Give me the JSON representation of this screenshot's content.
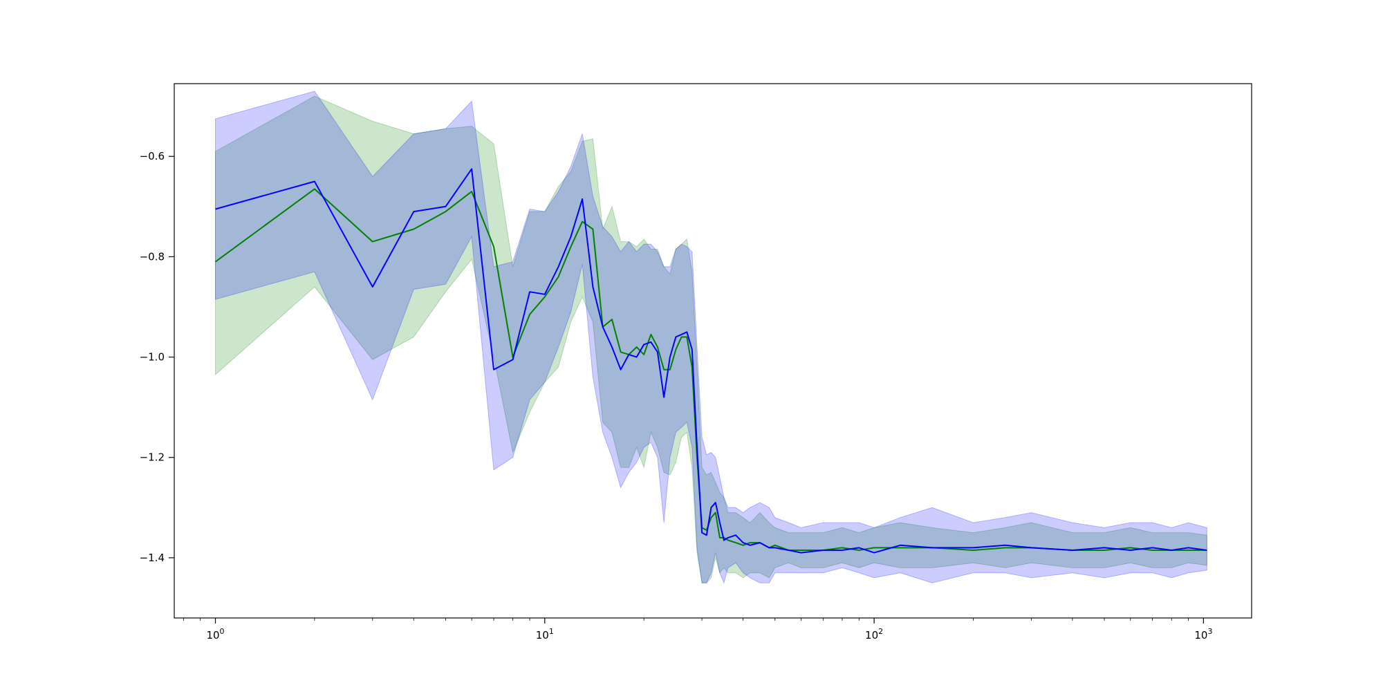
{
  "chart_data": {
    "type": "line",
    "title": "",
    "xlabel": "",
    "ylabel": "",
    "xscale": "log",
    "xlim": [
      0.75,
      1400
    ],
    "ylim": [
      -1.52,
      -0.455
    ],
    "grid": false,
    "legend": "none",
    "x_ticks": [
      {
        "value": 1,
        "base": "10",
        "exp": "0"
      },
      {
        "value": 10,
        "base": "10",
        "exp": "1"
      },
      {
        "value": 100,
        "base": "10",
        "exp": "2"
      },
      {
        "value": 1000,
        "base": "10",
        "exp": "3"
      }
    ],
    "y_ticks": [
      {
        "value": -0.6,
        "label": "−0.6"
      },
      {
        "value": -0.8,
        "label": "−0.8"
      },
      {
        "value": -1.0,
        "label": "−1.0"
      },
      {
        "value": -1.2,
        "label": "−1.2"
      },
      {
        "value": -1.4,
        "label": "−1.4"
      }
    ],
    "series": [
      {
        "color": "#008000",
        "band_color": "#008000",
        "x": [
          1,
          2,
          3,
          4,
          5,
          6,
          7,
          8,
          9,
          10,
          11,
          12,
          13,
          14,
          15,
          16,
          17,
          18,
          19,
          20,
          21,
          22,
          23,
          24,
          25,
          26,
          27,
          28,
          29,
          30,
          31,
          32,
          33,
          34,
          35,
          36,
          38,
          40,
          42,
          45,
          48,
          50,
          55,
          60,
          70,
          80,
          90,
          100,
          120,
          150,
          200,
          250,
          300,
          400,
          500,
          600,
          700,
          800,
          900,
          1024
        ],
        "mean": [
          -0.81,
          -0.665,
          -0.77,
          -0.745,
          -0.71,
          -0.67,
          -0.78,
          -1.0,
          -0.915,
          -0.88,
          -0.84,
          -0.78,
          -0.73,
          -0.745,
          -0.94,
          -0.925,
          -0.99,
          -0.995,
          -0.98,
          -0.995,
          -0.955,
          -0.98,
          -1.025,
          -1.025,
          -0.985,
          -0.96,
          -0.96,
          -1.02,
          -1.2,
          -1.34,
          -1.345,
          -1.32,
          -1.31,
          -1.36,
          -1.36,
          -1.365,
          -1.37,
          -1.375,
          -1.37,
          -1.37,
          -1.38,
          -1.375,
          -1.385,
          -1.385,
          -1.385,
          -1.38,
          -1.385,
          -1.38,
          -1.38,
          -1.38,
          -1.385,
          -1.38,
          -1.38,
          -1.385,
          -1.385,
          -1.38,
          -1.385,
          -1.385,
          -1.385,
          -1.385
        ],
        "upper": [
          -0.59,
          -0.48,
          -0.53,
          -0.555,
          -0.545,
          -0.54,
          -0.575,
          -0.82,
          -0.71,
          -0.71,
          -0.66,
          -0.63,
          -0.57,
          -0.565,
          -0.745,
          -0.7,
          -0.77,
          -0.77,
          -0.78,
          -0.765,
          -0.785,
          -0.785,
          -0.82,
          -0.835,
          -0.785,
          -0.775,
          -0.765,
          -0.83,
          -1.02,
          -1.22,
          -1.235,
          -1.23,
          -1.25,
          -1.27,
          -1.28,
          -1.31,
          -1.31,
          -1.32,
          -1.33,
          -1.31,
          -1.33,
          -1.34,
          -1.35,
          -1.35,
          -1.35,
          -1.34,
          -1.35,
          -1.34,
          -1.33,
          -1.34,
          -1.35,
          -1.34,
          -1.33,
          -1.35,
          -1.35,
          -1.34,
          -1.35,
          -1.35,
          -1.35,
          -1.355
        ],
        "lower": [
          -1.035,
          -0.86,
          -1.005,
          -0.96,
          -0.87,
          -0.805,
          -1.0,
          -1.19,
          -1.11,
          -1.05,
          -1.02,
          -0.93,
          -0.88,
          -0.93,
          -1.13,
          -1.15,
          -1.22,
          -1.22,
          -1.18,
          -1.22,
          -1.15,
          -1.18,
          -1.23,
          -1.235,
          -1.21,
          -1.16,
          -1.15,
          -1.22,
          -1.39,
          -1.45,
          -1.45,
          -1.44,
          -1.4,
          -1.43,
          -1.42,
          -1.43,
          -1.43,
          -1.44,
          -1.43,
          -1.43,
          -1.44,
          -1.42,
          -1.41,
          -1.42,
          -1.42,
          -1.41,
          -1.42,
          -1.41,
          -1.42,
          -1.42,
          -1.41,
          -1.42,
          -1.41,
          -1.42,
          -1.42,
          -1.41,
          -1.42,
          -1.42,
          -1.41,
          -1.415
        ]
      },
      {
        "color": "#0000ff",
        "band_color": "#0000ff",
        "x": [
          1,
          2,
          3,
          4,
          5,
          6,
          7,
          8,
          9,
          10,
          11,
          12,
          13,
          14,
          15,
          16,
          17,
          18,
          19,
          20,
          21,
          22,
          23,
          24,
          25,
          26,
          27,
          28,
          29,
          30,
          31,
          32,
          33,
          34,
          35,
          36,
          38,
          40,
          42,
          45,
          48,
          50,
          55,
          60,
          70,
          80,
          90,
          100,
          120,
          150,
          200,
          250,
          300,
          400,
          500,
          600,
          700,
          800,
          900,
          1024
        ],
        "mean": [
          -0.705,
          -0.65,
          -0.86,
          -0.71,
          -0.7,
          -0.625,
          -1.025,
          -1.005,
          -0.87,
          -0.875,
          -0.82,
          -0.76,
          -0.685,
          -0.86,
          -0.94,
          -0.98,
          -1.025,
          -0.995,
          -1.0,
          -0.975,
          -0.97,
          -0.99,
          -1.08,
          -1.0,
          -0.96,
          -0.955,
          -0.95,
          -0.985,
          -1.18,
          -1.35,
          -1.355,
          -1.3,
          -1.29,
          -1.33,
          -1.365,
          -1.36,
          -1.355,
          -1.37,
          -1.375,
          -1.37,
          -1.38,
          -1.38,
          -1.385,
          -1.39,
          -1.385,
          -1.385,
          -1.38,
          -1.39,
          -1.375,
          -1.38,
          -1.38,
          -1.375,
          -1.38,
          -1.385,
          -1.38,
          -1.385,
          -1.38,
          -1.385,
          -1.38,
          -1.385
        ],
        "upper": [
          -0.525,
          -0.47,
          -0.64,
          -0.555,
          -0.545,
          -0.49,
          -0.82,
          -0.81,
          -0.705,
          -0.71,
          -0.67,
          -0.62,
          -0.555,
          -0.68,
          -0.74,
          -0.76,
          -0.79,
          -0.77,
          -0.79,
          -0.775,
          -0.775,
          -0.79,
          -0.82,
          -0.82,
          -0.785,
          -0.775,
          -0.78,
          -0.79,
          -0.98,
          -1.16,
          -1.195,
          -1.19,
          -1.2,
          -1.24,
          -1.28,
          -1.3,
          -1.3,
          -1.31,
          -1.3,
          -1.29,
          -1.3,
          -1.32,
          -1.33,
          -1.34,
          -1.33,
          -1.33,
          -1.33,
          -1.34,
          -1.32,
          -1.3,
          -1.33,
          -1.32,
          -1.31,
          -1.33,
          -1.34,
          -1.33,
          -1.33,
          -1.34,
          -1.33,
          -1.34
        ],
        "lower": [
          -0.885,
          -0.83,
          -1.085,
          -0.865,
          -0.855,
          -0.76,
          -1.225,
          -1.2,
          -1.085,
          -1.05,
          -0.98,
          -0.91,
          -0.815,
          -1.04,
          -1.15,
          -1.2,
          -1.26,
          -1.23,
          -1.21,
          -1.18,
          -1.17,
          -1.2,
          -1.33,
          -1.2,
          -1.15,
          -1.14,
          -1.13,
          -1.18,
          -1.38,
          -1.45,
          -1.45,
          -1.43,
          -1.39,
          -1.43,
          -1.45,
          -1.42,
          -1.41,
          -1.43,
          -1.44,
          -1.45,
          -1.45,
          -1.43,
          -1.43,
          -1.43,
          -1.43,
          -1.42,
          -1.43,
          -1.44,
          -1.43,
          -1.45,
          -1.43,
          -1.43,
          -1.44,
          -1.43,
          -1.44,
          -1.43,
          -1.43,
          -1.44,
          -1.43,
          -1.425
        ]
      }
    ]
  }
}
